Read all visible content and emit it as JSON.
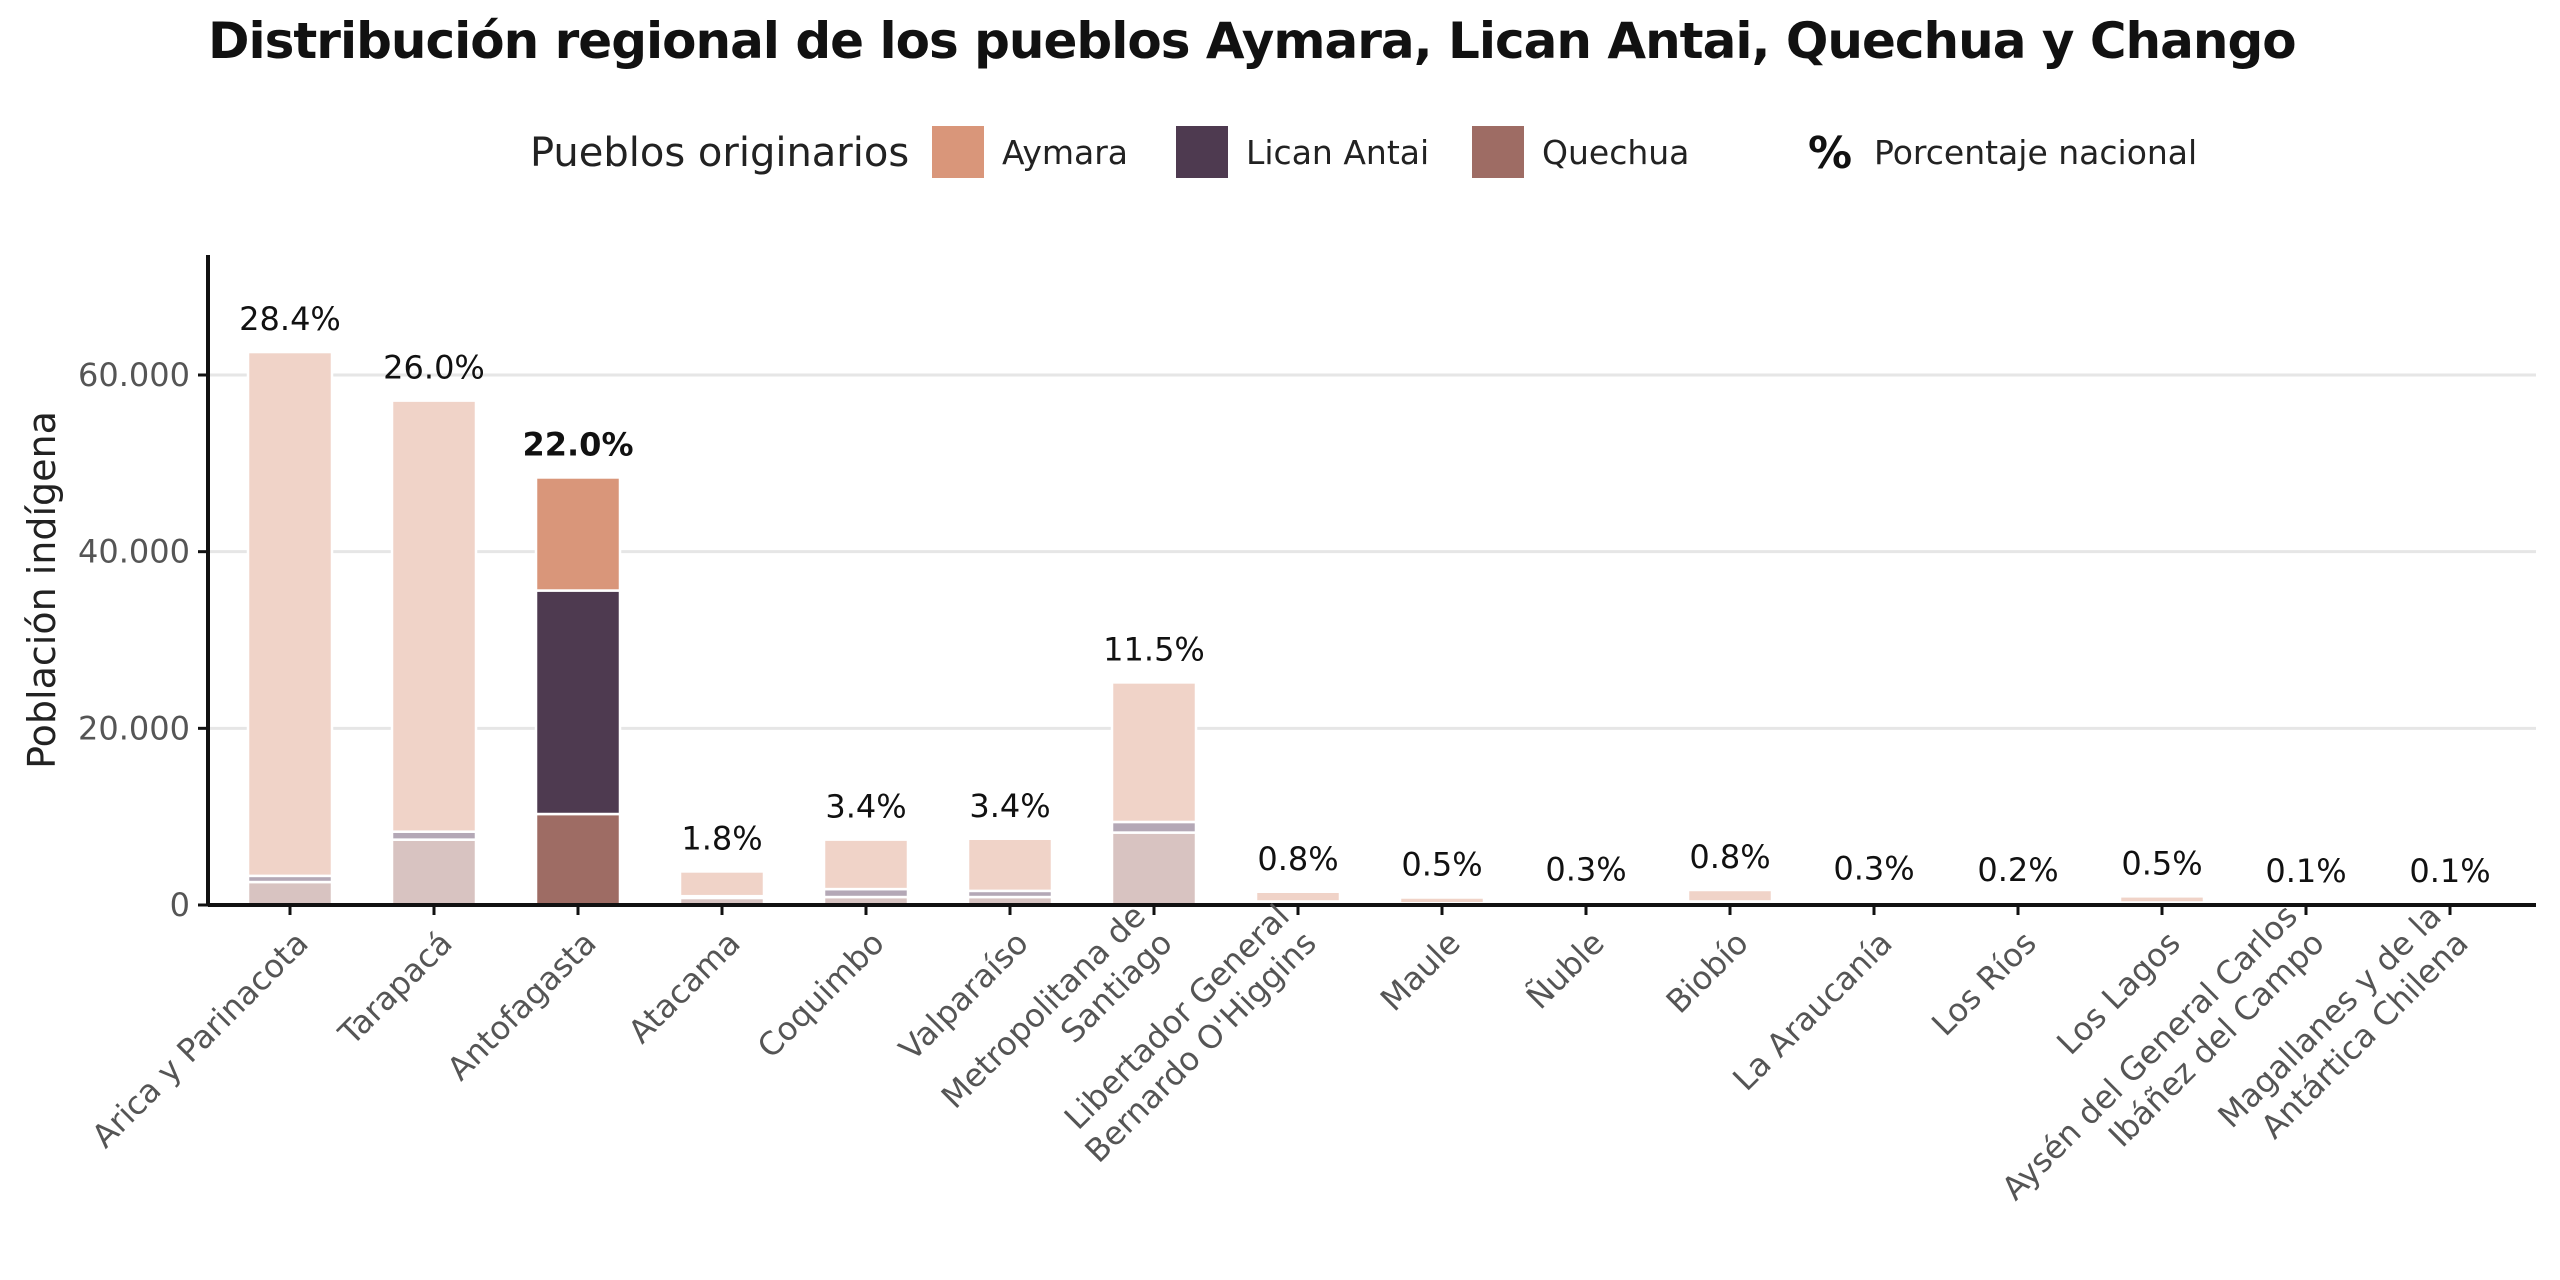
{
  "chart_data": {
    "type": "bar",
    "stacked": true,
    "title": "Distribución regional de los pueblos Aymara, Lican Antai, Quechua y Chango",
    "ylabel": "Población indígena",
    "xlabel": "",
    "ylim": [
      0,
      73000
    ],
    "yticks": [
      0,
      20000,
      40000,
      60000
    ],
    "ytick_labels": [
      "0",
      "20.000",
      "40.000",
      "60.000"
    ],
    "grid": "horizontal",
    "legend": {
      "title": "Pueblos originarios",
      "placement": "top",
      "entries": [
        {
          "name": "Aymara",
          "color": "#d9967a"
        },
        {
          "name": "Lican Antai",
          "color": "#4e3a50"
        },
        {
          "name": "Quechua",
          "color": "#9e6c64"
        }
      ],
      "percent_symbol": "%",
      "percent_label": "Porcentaje nacional"
    },
    "highlight_index": 2,
    "muted_colors": {
      "Aymara": "#f0d3c8",
      "Lican Antai": "#b4a8b6",
      "Quechua": "#d8c3c1"
    },
    "categories": [
      "Arica y Parinacota",
      "Tarapacá",
      "Antofagasta",
      "Atacama",
      "Coquimbo",
      "Valparaíso",
      "Metropolitana de Santiago",
      "Libertador General Bernardo O'Higgins",
      "Maule",
      "Ñuble",
      "Biobío",
      "La Araucanía",
      "Los Ríos",
      "Los Lagos",
      "Aysén del General Carlos Ibáñez del Campo",
      "Magallanes y de la Antártica Chilena"
    ],
    "category_lines": [
      [
        "Arica y Parinacota"
      ],
      [
        "Tarapacá"
      ],
      [
        "Antofagasta"
      ],
      [
        "Atacama"
      ],
      [
        "Coquimbo"
      ],
      [
        "Valparaíso"
      ],
      [
        "Metropolitana de",
        "Santiago"
      ],
      [
        "Libertador General",
        "Bernardo O'Higgins"
      ],
      [
        "Maule"
      ],
      [
        "Ñuble"
      ],
      [
        "Biobío"
      ],
      [
        "La Araucanía"
      ],
      [
        "Los Ríos"
      ],
      [
        "Los Lagos"
      ],
      [
        "Aysén del General Carlos",
        "Ibáñez del Campo"
      ],
      [
        "Magallanes y de la",
        "Antártica Chilena"
      ]
    ],
    "series": [
      {
        "name": "Quechua",
        "values": [
          2600,
          7400,
          10300,
          800,
          900,
          900,
          8200,
          300,
          150,
          80,
          300,
          100,
          60,
          200,
          40,
          40
        ]
      },
      {
        "name": "Lican Antai",
        "values": [
          700,
          900,
          25300,
          200,
          900,
          700,
          1200,
          100,
          50,
          20,
          100,
          30,
          20,
          80,
          10,
          10
        ]
      },
      {
        "name": "Aymara",
        "values": [
          59300,
          48800,
          12800,
          2800,
          5600,
          5900,
          15800,
          1100,
          650,
          200,
          1300,
          270,
          170,
          700,
          50,
          50
        ]
      }
    ],
    "percent_labels": [
      "28.4%",
      "26.0%",
      "22.0%",
      "1.8%",
      "3.4%",
      "3.4%",
      "11.5%",
      "0.8%",
      "0.5%",
      "0.3%",
      "0.8%",
      "0.3%",
      "0.2%",
      "0.5%",
      "0.1%",
      "0.1%"
    ]
  }
}
